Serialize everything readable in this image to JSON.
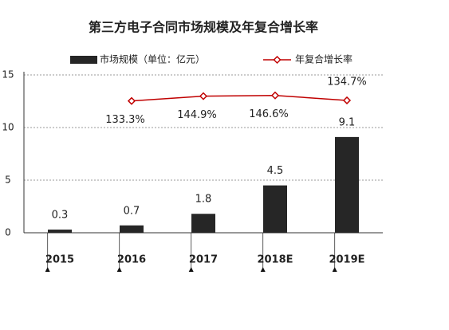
{
  "chart_data": {
    "type": "bar_line",
    "title": "第三方电子合同市场规模及年复合增长率",
    "categories": [
      "2015",
      "2016",
      "2017",
      "2018E",
      "2019E"
    ],
    "series": [
      {
        "name": "市场规模（单位：亿元）",
        "type": "bar",
        "color": "#262626",
        "values": [
          0.3,
          0.7,
          1.8,
          4.5,
          9.1
        ]
      },
      {
        "name": "年复合增长率",
        "type": "line",
        "axis": "y2",
        "color": "#c00000",
        "values": [
          null,
          133.3,
          144.9,
          146.6,
          134.7
        ],
        "value_labels": [
          null,
          "133.3%",
          "144.9%",
          "146.6%",
          "134.7%"
        ]
      }
    ],
    "ylim": [
      0,
      15
    ],
    "yticks": [
      0,
      5,
      10,
      15
    ],
    "y2lim": [
      -184,
      196
    ],
    "grid": true
  }
}
